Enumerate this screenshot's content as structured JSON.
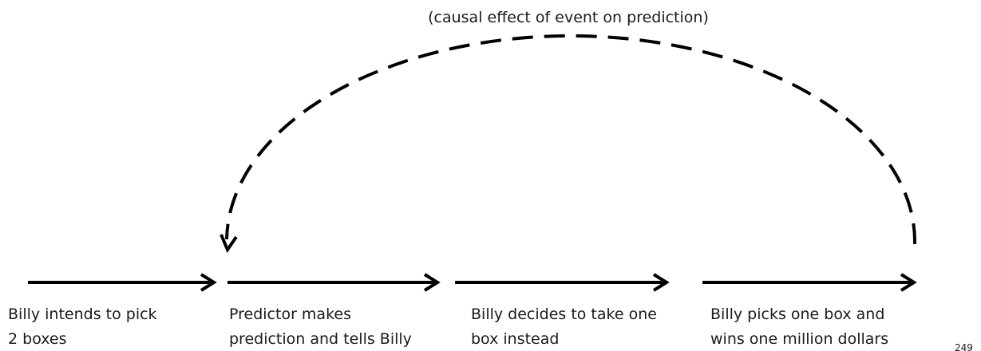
{
  "annotation": "(causal effect of event on prediction)",
  "labels": [
    {
      "lines": [
        "Billy intends to pick",
        "2 boxes"
      ]
    },
    {
      "lines": [
        "Predictor makes",
        "prediction and tells Billy"
      ]
    },
    {
      "lines": [
        "Billy decides to take one",
        "box instead"
      ]
    },
    {
      "lines": [
        "Billy picks one box and",
        "wins one million dollars"
      ]
    }
  ],
  "page_number": "249"
}
